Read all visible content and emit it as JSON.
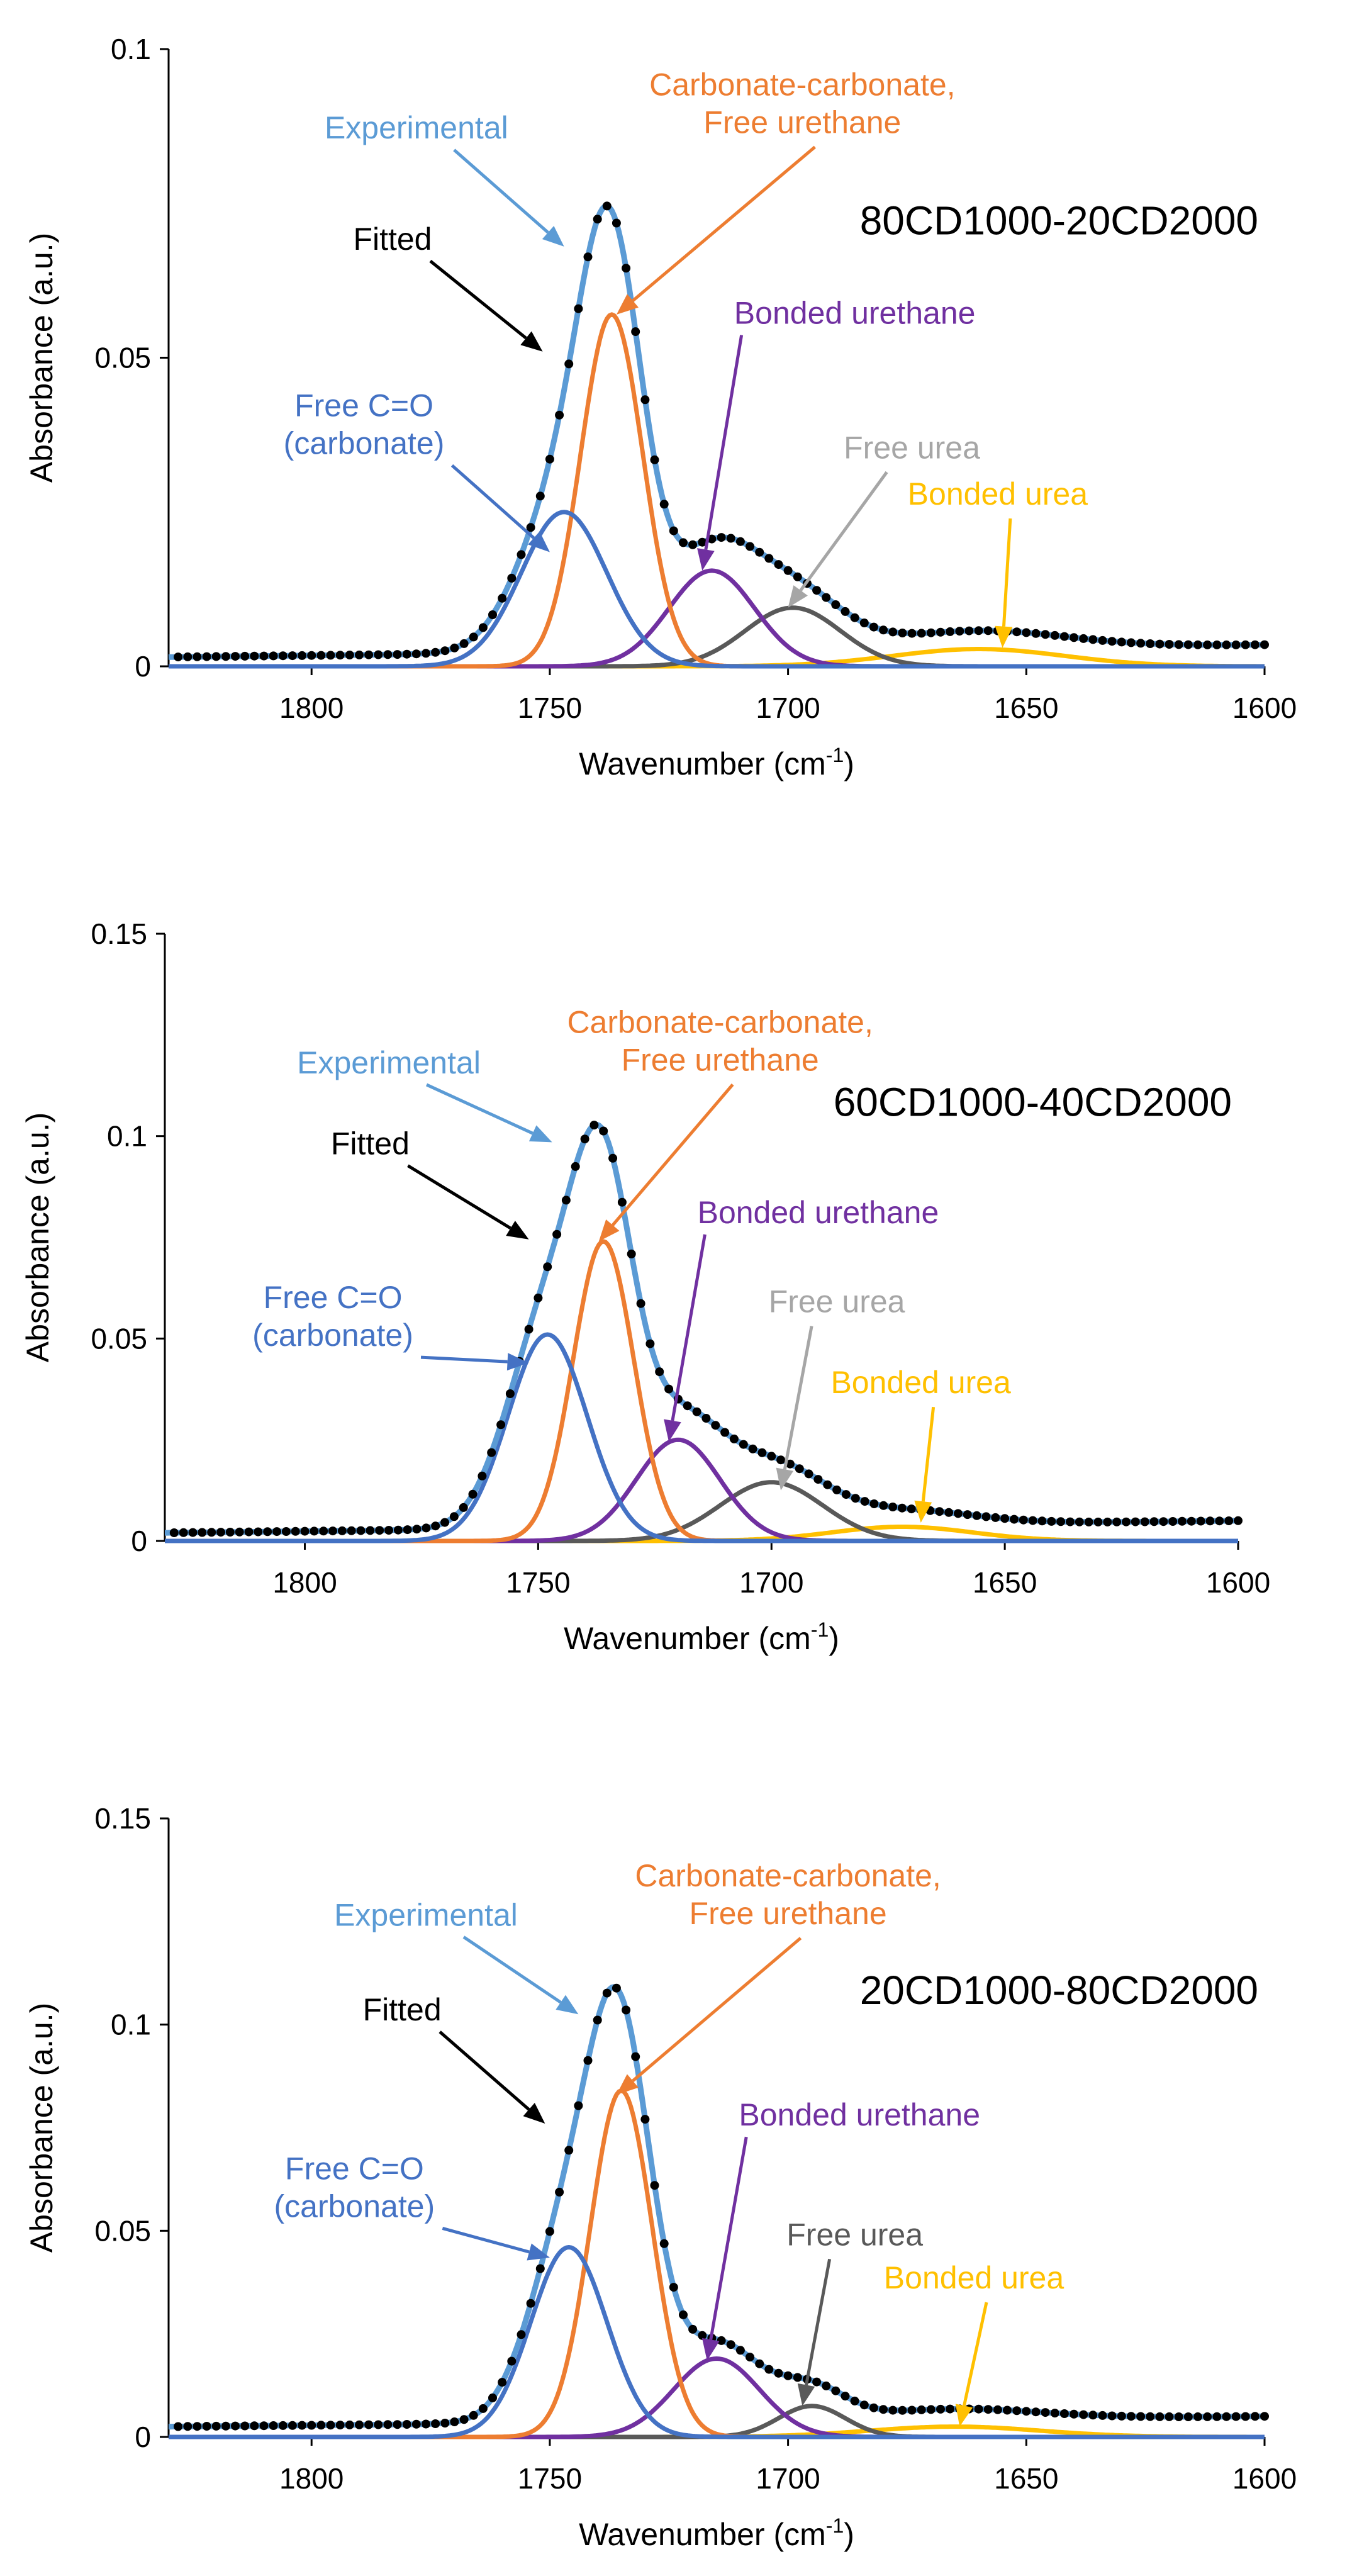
{
  "chart_data": [
    {
      "type": "line",
      "title": "80CD1000-20CD2000",
      "xlabel": "Wavenumber  (cm-1)",
      "xlabel_main": "Wavenumber  (cm",
      "xlabel_sup": "-1",
      "xlabel_end": ")",
      "ylabel": "Absorbance (a.u.)",
      "xlim": [
        1830,
        1600
      ],
      "ylim": [
        0,
        0.1
      ],
      "xticks": [
        1800,
        1750,
        1700,
        1650,
        1600
      ],
      "xtick_labels": [
        "1800",
        "1750",
        "1700",
        "1650",
        "1600"
      ],
      "yticks": [
        0,
        0.05,
        0.1
      ],
      "ytick_labels": [
        "0",
        "0.05",
        "0.1"
      ],
      "grid": false,
      "series": [
        {
          "name": "Experimental",
          "color": "#5b9bd5",
          "kind": "sum-line"
        },
        {
          "name": "Fitted",
          "color": "#000000",
          "kind": "dots"
        },
        {
          "name": "Free C=O (carbonate)",
          "color": "#4472c4",
          "kind": "peak",
          "center": 1747,
          "height": 0.025,
          "width": 9
        },
        {
          "name": "Carbonate-carbonate, Free urethane",
          "color": "#ed7d31",
          "kind": "peak",
          "center": 1737,
          "height": 0.057,
          "width": 6.5
        },
        {
          "name": "Bonded urethane",
          "color": "#7030a0",
          "kind": "peak",
          "center": 1716,
          "height": 0.0155,
          "width": 9
        },
        {
          "name": "Free urea",
          "color": "#595959",
          "kind": "peak",
          "center": 1699,
          "height": 0.0095,
          "width": 10
        },
        {
          "name": "Bonded urea",
          "color": "#ffc000",
          "kind": "peak",
          "center": 1660,
          "height": 0.0028,
          "width": 18
        }
      ],
      "baseline": {
        "left": 0.0015,
        "right": 0.0035
      },
      "annotations": [
        {
          "key": "exp",
          "lines": [
            "Experimental"
          ],
          "color": "#5b9bd5",
          "tx": 1778,
          "ty": 0.0855,
          "ax": 1747,
          "ay": 0.068
        },
        {
          "key": "fit",
          "lines": [
            "Fitted"
          ],
          "color": "#000000",
          "tx": 1783,
          "ty": 0.0675,
          "ax": 1751.5,
          "ay": 0.051
        },
        {
          "key": "fco",
          "lines": [
            "Free C=O",
            "(carbonate)"
          ],
          "color": "#4472c4",
          "tx": 1789,
          "ty": 0.0405,
          "ax": 1750,
          "ay": 0.0185
        },
        {
          "key": "cc",
          "lines": [
            "Carbonate-carbonate,",
            "Free urethane"
          ],
          "color": "#ed7d31",
          "tx": 1697,
          "ty": 0.0925,
          "ax": 1736,
          "ay": 0.057
        },
        {
          "key": "bu",
          "lines": [
            "Bonded  urethane"
          ],
          "color": "#7030a0",
          "tx": 1686,
          "ty": 0.0555,
          "ax": 1718,
          "ay": 0.0155
        },
        {
          "key": "fu",
          "lines": [
            "Free urea"
          ],
          "color": "#a6a6a6",
          "tx": 1674,
          "ty": 0.0337,
          "ax": 1700,
          "ay": 0.0095
        },
        {
          "key": "bur",
          "lines": [
            "Bonded urea"
          ],
          "color": "#ffc000",
          "tx": 1656,
          "ty": 0.0262,
          "ax": 1655,
          "ay": 0.003
        }
      ]
    },
    {
      "type": "line",
      "title": "60CD1000-40CD2000",
      "xlabel": "Wavenumber  (cm-1)",
      "xlabel_main": "Wavenumber  (cm",
      "xlabel_sup": "-1",
      "xlabel_end": ")",
      "ylabel": "Absorbance (a.u.)",
      "xlim": [
        1830,
        1600
      ],
      "ylim": [
        0,
        0.15
      ],
      "xticks": [
        1800,
        1750,
        1700,
        1650,
        1600
      ],
      "xtick_labels": [
        "1800",
        "1750",
        "1700",
        "1650",
        "1600"
      ],
      "yticks": [
        0,
        0.05,
        0.1,
        0.15
      ],
      "ytick_labels": [
        "0",
        "0.05",
        "0.1",
        "0.15"
      ],
      "grid": false,
      "series": [
        {
          "name": "Experimental",
          "color": "#5b9bd5",
          "kind": "sum-line"
        },
        {
          "name": "Fitted",
          "color": "#000000",
          "kind": "dots"
        },
        {
          "name": "Free C=O (carbonate)",
          "color": "#4472c4",
          "kind": "peak",
          "center": 1748,
          "height": 0.051,
          "width": 8.5
        },
        {
          "name": "Carbonate-carbonate, Free urethane",
          "color": "#ed7d31",
          "kind": "peak",
          "center": 1736,
          "height": 0.074,
          "width": 6.5
        },
        {
          "name": "Bonded urethane",
          "color": "#7030a0",
          "kind": "peak",
          "center": 1720,
          "height": 0.025,
          "width": 9
        },
        {
          "name": "Free urea",
          "color": "#595959",
          "kind": "peak",
          "center": 1700,
          "height": 0.0145,
          "width": 11
        },
        {
          "name": "Bonded urea",
          "color": "#ffc000",
          "kind": "peak",
          "center": 1672,
          "height": 0.0035,
          "width": 15
        }
      ],
      "baseline": {
        "left": 0.002,
        "right": 0.005
      },
      "annotations": [
        {
          "key": "exp",
          "lines": [
            "Experimental"
          ],
          "color": "#5b9bd5",
          "tx": 1782,
          "ty": 0.1155,
          "ax": 1747,
          "ay": 0.0985
        },
        {
          "key": "fit",
          "lines": [
            "Fitted"
          ],
          "color": "#000000",
          "tx": 1786,
          "ty": 0.0955,
          "ax": 1752,
          "ay": 0.0745
        },
        {
          "key": "fco",
          "lines": [
            "Free C=O",
            "(carbonate)"
          ],
          "color": "#4472c4",
          "tx": 1794,
          "ty": 0.0575,
          "ax": 1752,
          "ay": 0.044
        },
        {
          "key": "cc",
          "lines": [
            "Carbonate-carbonate,",
            "Free urethane"
          ],
          "color": "#ed7d31",
          "tx": 1711,
          "ty": 0.1255,
          "ax": 1737,
          "ay": 0.074
        },
        {
          "key": "bu",
          "lines": [
            "Bonded  urethane"
          ],
          "color": "#7030a0",
          "tx": 1690,
          "ty": 0.0785,
          "ax": 1722,
          "ay": 0.0245
        },
        {
          "key": "fu",
          "lines": [
            "Free urea"
          ],
          "color": "#a6a6a6",
          "tx": 1686,
          "ty": 0.0565,
          "ax": 1698,
          "ay": 0.0125
        },
        {
          "key": "bur",
          "lines": [
            "Bonded urea"
          ],
          "color": "#ffc000",
          "tx": 1668,
          "ty": 0.0365,
          "ax": 1668,
          "ay": 0.0045
        }
      ]
    },
    {
      "type": "line",
      "title": "20CD1000-80CD2000",
      "xlabel": "Wavenumber  (cm-1)",
      "xlabel_main": "Wavenumber  (cm",
      "xlabel_sup": "-1",
      "xlabel_end": ")",
      "ylabel": "Absorbance (a.u.)",
      "xlim": [
        1830,
        1600
      ],
      "ylim": [
        0,
        0.15
      ],
      "xticks": [
        1800,
        1750,
        1700,
        1650,
        1600
      ],
      "xtick_labels": [
        "1800",
        "1750",
        "1700",
        "1650",
        "1600"
      ],
      "yticks": [
        0,
        0.05,
        0.1,
        0.15
      ],
      "ytick_labels": [
        "0",
        "0.05",
        "0.1",
        "0.15"
      ],
      "grid": false,
      "series": [
        {
          "name": "Experimental",
          "color": "#5b9bd5",
          "kind": "sum-line"
        },
        {
          "name": "Fitted",
          "color": "#000000",
          "kind": "dots"
        },
        {
          "name": "Free C=O (carbonate)",
          "color": "#4472c4",
          "kind": "peak",
          "center": 1746,
          "height": 0.046,
          "width": 8
        },
        {
          "name": "Carbonate-carbonate, Free urethane",
          "color": "#ed7d31",
          "kind": "peak",
          "center": 1735,
          "height": 0.084,
          "width": 6.5
        },
        {
          "name": "Bonded urethane",
          "color": "#7030a0",
          "kind": "peak",
          "center": 1715,
          "height": 0.019,
          "width": 9
        },
        {
          "name": "Free urea",
          "color": "#595959",
          "kind": "peak",
          "center": 1695,
          "height": 0.0075,
          "width": 7
        },
        {
          "name": "Bonded urea",
          "color": "#ffc000",
          "kind": "peak",
          "center": 1665,
          "height": 0.0025,
          "width": 18
        }
      ],
      "baseline": {
        "left": 0.0025,
        "right": 0.005
      },
      "annotations": [
        {
          "key": "exp",
          "lines": [
            "Experimental"
          ],
          "color": "#5b9bd5",
          "tx": 1776,
          "ty": 0.124,
          "ax": 1744,
          "ay": 0.1025
        },
        {
          "key": "fit",
          "lines": [
            "Fitted"
          ],
          "color": "#000000",
          "tx": 1781,
          "ty": 0.101,
          "ax": 1751,
          "ay": 0.076
        },
        {
          "key": "fco",
          "lines": [
            "Free C=O",
            "(carbonate)"
          ],
          "color": "#4472c4",
          "tx": 1791,
          "ty": 0.0625,
          "ax": 1750,
          "ay": 0.0435
        },
        {
          "key": "cc",
          "lines": [
            "Carbonate-carbonate,",
            "Free urethane"
          ],
          "color": "#ed7d31",
          "tx": 1700,
          "ty": 0.1335,
          "ax": 1736,
          "ay": 0.083
        },
        {
          "key": "bu",
          "lines": [
            "Bonded  urethane"
          ],
          "color": "#7030a0",
          "tx": 1685,
          "ty": 0.0755,
          "ax": 1717,
          "ay": 0.0185
        },
        {
          "key": "fu",
          "lines": [
            "Free urea"
          ],
          "color": "#595959",
          "tx": 1686,
          "ty": 0.0465,
          "ax": 1697,
          "ay": 0.0075
        },
        {
          "key": "bur",
          "lines": [
            "Bonded urea"
          ],
          "color": "#ffc000",
          "tx": 1661,
          "ty": 0.036,
          "ax": 1664,
          "ay": 0.0025
        }
      ]
    }
  ]
}
